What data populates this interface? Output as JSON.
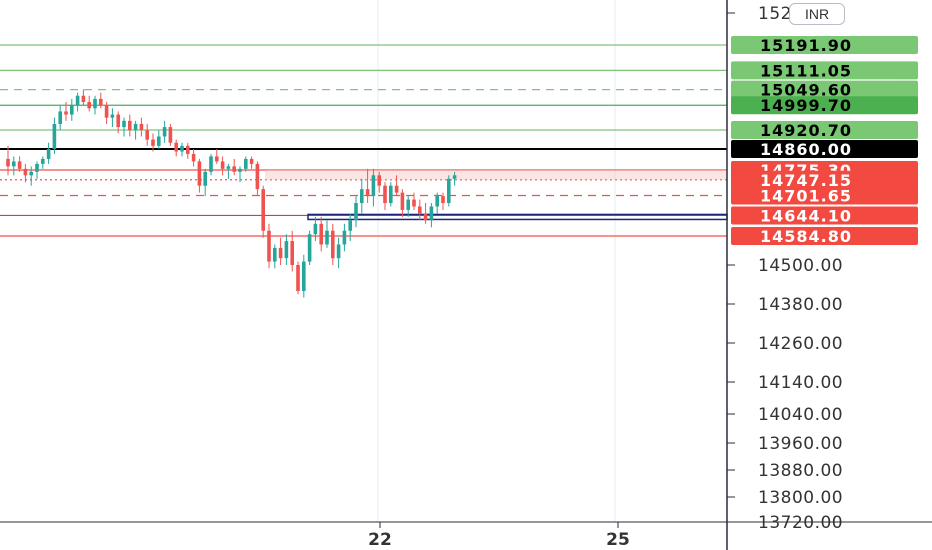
{
  "header": {
    "currency_label": "INR"
  },
  "chart_data": {
    "type": "candlestick",
    "ylim": [
      13720,
      15280
    ],
    "y_ticks": [
      "15280.00",
      "14500.00",
      "14380.00",
      "14260.00",
      "14140.00",
      "14040.00",
      "13960.00",
      "13880.00",
      "13800.00",
      "13720.00"
    ],
    "y_tick_values": [
      15280,
      14500,
      14380,
      14260,
      14140,
      14040,
      13960,
      13880,
      13800,
      13720
    ],
    "x_ticks": [
      "22",
      "25"
    ],
    "price_levels": [
      {
        "value": 15191.9,
        "label": "15191.90",
        "color": "#7dc57a",
        "style": "solid"
      },
      {
        "value": 15111.05,
        "label": "15111.05",
        "color": "#7dc57a",
        "style": "solid"
      },
      {
        "value": 15049.6,
        "label": "15049.60",
        "color": "#7dc57a",
        "style": "dashed"
      },
      {
        "value": 14999.7,
        "label": "14999.70",
        "color": "#4caf50",
        "style": "solid"
      },
      {
        "value": 14920.7,
        "label": "14920.70",
        "color": "#7dc57a",
        "style": "solid"
      },
      {
        "value": 14860.0,
        "label": "14860.00",
        "color": "#000000",
        "style": "solid"
      },
      {
        "value": 14775.3,
        "label": "14775.30",
        "color": "#f0524a",
        "style": "solid"
      },
      {
        "value": 14747.15,
        "label": "14747.15",
        "color": "#f0524a",
        "style": "dotted"
      },
      {
        "value": 14701.65,
        "label": "14701.65",
        "color": "#f0524a",
        "style": "dashed"
      },
      {
        "value": 14644.1,
        "label": "14644.10",
        "color": "#e53935",
        "style": "solid"
      },
      {
        "value": 14584.8,
        "label": "14584.80",
        "color": "#f0524a",
        "style": "solid"
      }
    ],
    "candles": [
      [
        14820,
        14870,
        14760,
        14790
      ],
      [
        14790,
        14830,
        14760,
        14810
      ],
      [
        14810,
        14830,
        14770,
        14780
      ],
      [
        14780,
        14800,
        14740,
        14760
      ],
      [
        14760,
        14790,
        14730,
        14770
      ],
      [
        14770,
        14810,
        14750,
        14800
      ],
      [
        14800,
        14830,
        14780,
        14820
      ],
      [
        14820,
        14880,
        14800,
        14860
      ],
      [
        14860,
        14960,
        14840,
        14940
      ],
      [
        14940,
        15000,
        14920,
        14980
      ],
      [
        14980,
        15010,
        14950,
        14970
      ],
      [
        14970,
        15020,
        14950,
        15000
      ],
      [
        15000,
        15040,
        14980,
        15030
      ],
      [
        15030,
        15050,
        15000,
        15010
      ],
      [
        15010,
        15030,
        14980,
        14990
      ],
      [
        14990,
        15030,
        14970,
        15020
      ],
      [
        15020,
        15040,
        14990,
        15000
      ],
      [
        15000,
        15010,
        14940,
        14960
      ],
      [
        14960,
        14990,
        14930,
        14970
      ],
      [
        14970,
        14980,
        14910,
        14930
      ],
      [
        14930,
        14960,
        14900,
        14950
      ],
      [
        14950,
        14970,
        14900,
        14920
      ],
      [
        14920,
        14950,
        14890,
        14940
      ],
      [
        14940,
        14960,
        14900,
        14920
      ],
      [
        14920,
        14940,
        14870,
        14890
      ],
      [
        14890,
        14910,
        14850,
        14870
      ],
      [
        14870,
        14920,
        14860,
        14900
      ],
      [
        14900,
        14950,
        14880,
        14930
      ],
      [
        14930,
        14940,
        14870,
        14880
      ],
      [
        14880,
        14890,
        14830,
        14850
      ],
      [
        14850,
        14880,
        14830,
        14870
      ],
      [
        14870,
        14880,
        14820,
        14840
      ],
      [
        14840,
        14860,
        14790,
        14810
      ],
      [
        14810,
        14820,
        14710,
        14730
      ],
      [
        14730,
        14780,
        14700,
        14770
      ],
      [
        14770,
        14840,
        14760,
        14830
      ],
      [
        14830,
        14860,
        14800,
        14810
      ],
      [
        14810,
        14830,
        14760,
        14780
      ],
      [
        14780,
        14800,
        14750,
        14790
      ],
      [
        14790,
        14820,
        14760,
        14770
      ],
      [
        14770,
        14790,
        14740,
        14780
      ],
      [
        14780,
        14830,
        14770,
        14820
      ],
      [
        14820,
        14830,
        14780,
        14800
      ],
      [
        14800,
        14810,
        14700,
        14720
      ],
      [
        14720,
        14730,
        14580,
        14600
      ],
      [
        14600,
        14620,
        14490,
        14510
      ],
      [
        14510,
        14560,
        14490,
        14550
      ],
      [
        14550,
        14580,
        14500,
        14520
      ],
      [
        14520,
        14590,
        14500,
        14570
      ],
      [
        14570,
        14600,
        14480,
        14500
      ],
      [
        14500,
        14510,
        14410,
        14420
      ],
      [
        14420,
        14530,
        14400,
        14510
      ],
      [
        14510,
        14600,
        14500,
        14590
      ],
      [
        14590,
        14640,
        14570,
        14620
      ],
      [
        14620,
        14640,
        14540,
        14560
      ],
      [
        14560,
        14630,
        14550,
        14600
      ],
      [
        14600,
        14620,
        14500,
        14520
      ],
      [
        14520,
        14580,
        14490,
        14560
      ],
      [
        14560,
        14620,
        14540,
        14600
      ],
      [
        14600,
        14650,
        14570,
        14630
      ],
      [
        14630,
        14700,
        14610,
        14680
      ],
      [
        14680,
        14750,
        14650,
        14720
      ],
      [
        14720,
        14780,
        14680,
        14700
      ],
      [
        14700,
        14780,
        14670,
        14760
      ],
      [
        14760,
        14770,
        14710,
        14730
      ],
      [
        14730,
        14740,
        14660,
        14680
      ],
      [
        14680,
        14740,
        14670,
        14730
      ],
      [
        14730,
        14760,
        14700,
        14710
      ],
      [
        14710,
        14720,
        14640,
        14660
      ],
      [
        14660,
        14700,
        14640,
        14690
      ],
      [
        14690,
        14710,
        14660,
        14670
      ],
      [
        14670,
        14690,
        14630,
        14650
      ],
      [
        14650,
        14680,
        14620,
        14630
      ],
      [
        14630,
        14680,
        14610,
        14670
      ],
      [
        14670,
        14710,
        14650,
        14700
      ],
      [
        14700,
        14710,
        14660,
        14680
      ],
      [
        14680,
        14760,
        14670,
        14750
      ],
      [
        14750,
        14770,
        14730,
        14760
      ]
    ]
  }
}
